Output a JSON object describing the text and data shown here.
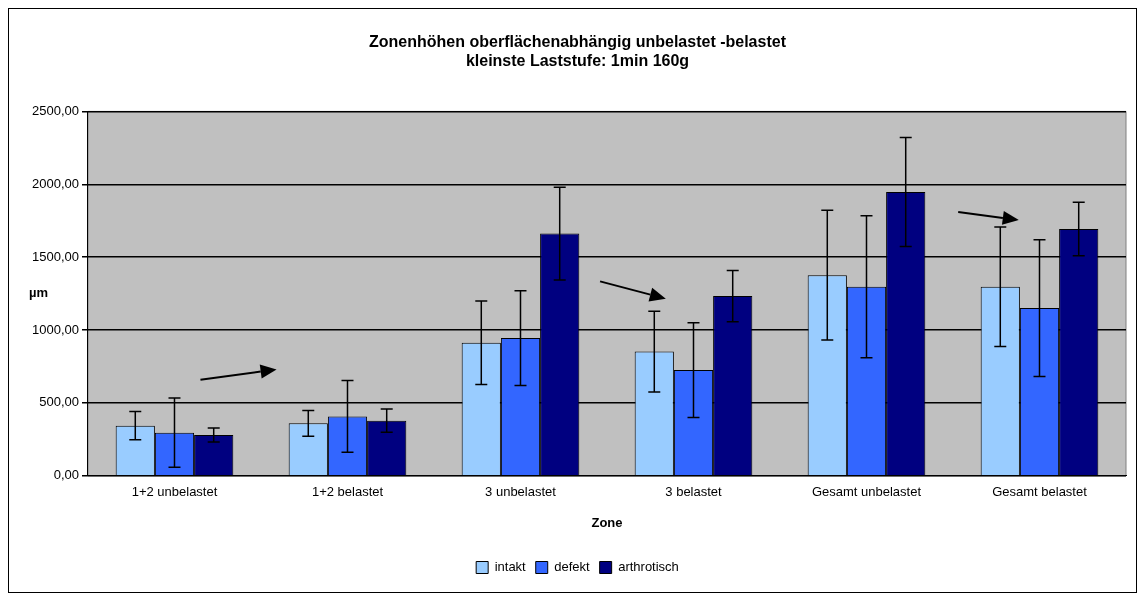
{
  "chart_data": {
    "type": "bar",
    "title": "Zonenhöhen oberflächenabhängig unbelastet -belastet\nkleinste Laststufe: 1min 160g",
    "xlabel": "Zone",
    "ylabel": "µm",
    "categories": [
      "1+2 unbelastet",
      "1+2 belastet",
      "3 unbelastet",
      "3 belastet",
      "Gesamt unbelastet",
      "Gesamt belastet"
    ],
    "series": [
      {
        "name": "intakt",
        "color": "#99ccff",
        "values": [
          344,
          360,
          913,
          852,
          1376,
          1297
        ],
        "errors": [
          97,
          88,
          287,
          277,
          445,
          410
        ]
      },
      {
        "name": "defekt",
        "color": "#3366ff",
        "values": [
          296,
          407,
          945,
          725,
          1297,
          1151
        ],
        "errors": [
          238,
          246,
          325,
          325,
          487,
          469
        ]
      },
      {
        "name": "arthrotisch",
        "color": "#000080",
        "values": [
          280,
          378,
          1662,
          1233,
          1947,
          1693
        ],
        "errors": [
          48,
          80,
          318,
          176,
          374,
          183
        ]
      }
    ],
    "ylim": [
      0,
      2500
    ],
    "yticks": [
      {
        "value": 0,
        "label": "0,00"
      },
      {
        "value": 500,
        "label": "500,00"
      },
      {
        "value": 1000,
        "label": "1000,00"
      },
      {
        "value": 1500,
        "label": "1500,00"
      },
      {
        "value": 2000,
        "label": "2000,00"
      },
      {
        "value": 2500,
        "label": "2500,00"
      }
    ],
    "grid": "y",
    "legend": "bottom"
  }
}
